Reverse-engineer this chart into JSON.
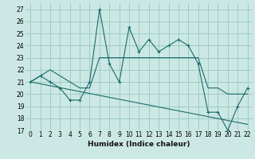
{
  "xlabel": "Humidex (Indice chaleur)",
  "bg_color": "#cce8e4",
  "grid_color": "#9dccc7",
  "line_color": "#1a6b6b",
  "xlim": [
    -0.5,
    22.5
  ],
  "ylim": [
    17,
    27.5
  ],
  "yticks": [
    17,
    18,
    19,
    20,
    21,
    22,
    23,
    24,
    25,
    26,
    27
  ],
  "xticks": [
    0,
    1,
    2,
    3,
    4,
    5,
    6,
    7,
    8,
    9,
    10,
    11,
    12,
    13,
    14,
    15,
    16,
    17,
    18,
    19,
    20,
    21,
    22
  ],
  "series1_x": [
    0,
    1,
    2,
    3,
    4,
    5,
    6,
    7,
    8,
    9,
    10,
    11,
    12,
    13,
    14,
    15,
    16,
    17,
    18,
    19,
    20,
    21,
    22
  ],
  "series1_y": [
    21.0,
    21.5,
    21.0,
    20.5,
    19.5,
    19.5,
    21.0,
    27.0,
    22.5,
    21.0,
    25.5,
    23.5,
    24.5,
    23.5,
    24.0,
    24.5,
    24.0,
    22.5,
    18.5,
    18.5,
    17.0,
    19.0,
    20.5
  ],
  "series2_x": [
    0,
    1,
    2,
    3,
    4,
    5,
    6,
    7,
    8,
    9,
    10,
    11,
    12,
    13,
    14,
    15,
    16,
    17,
    18,
    19,
    20,
    21,
    22
  ],
  "series2_y": [
    21.0,
    21.5,
    22.0,
    21.5,
    21.0,
    20.5,
    20.5,
    23.0,
    23.0,
    23.0,
    23.0,
    23.0,
    23.0,
    23.0,
    23.0,
    23.0,
    23.0,
    23.0,
    20.5,
    20.5,
    20.0,
    20.0,
    20.0
  ],
  "series3_x": [
    0,
    22
  ],
  "series3_y": [
    21.0,
    17.5
  ]
}
